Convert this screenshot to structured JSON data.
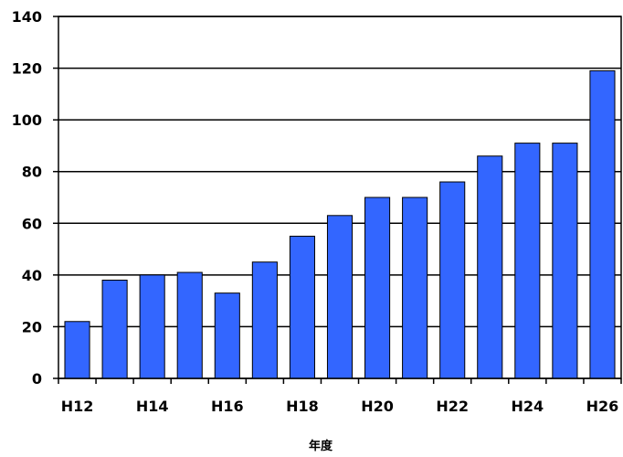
{
  "chart_data": {
    "type": "bar",
    "title": "",
    "xlabel": "年度",
    "ylabel": "",
    "ylim": [
      0,
      140
    ],
    "yticks": [
      0,
      20,
      40,
      60,
      80,
      100,
      120,
      140
    ],
    "grid": true,
    "categories": [
      "H12",
      "H13",
      "H14",
      "H15",
      "H16",
      "H17",
      "H18",
      "H19",
      "H20",
      "H21",
      "H22",
      "H23",
      "H24",
      "H25",
      "H26"
    ],
    "x_tick_labels": [
      "H12",
      "",
      "H14",
      "",
      "H16",
      "",
      "H18",
      "",
      "H20",
      "",
      "H22",
      "",
      "H24",
      "",
      "H26"
    ],
    "values": [
      22,
      38,
      40,
      41,
      33,
      45,
      55,
      63,
      70,
      70,
      76,
      86,
      91,
      91,
      119
    ],
    "bar_color": "#3366ff"
  }
}
